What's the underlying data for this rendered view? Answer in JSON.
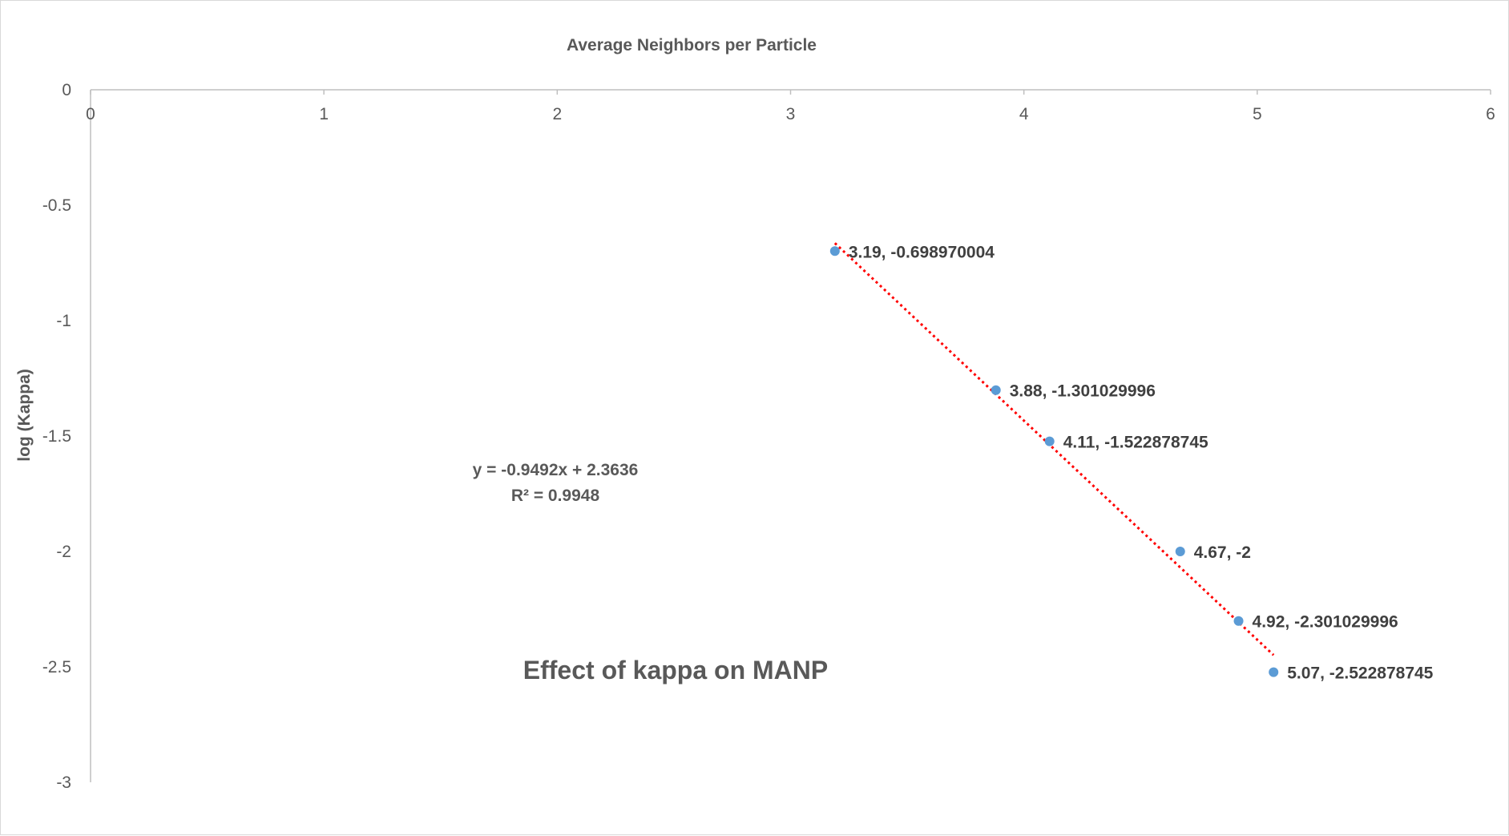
{
  "chart_data": {
    "type": "scatter",
    "title": "Effect of kappa on MANP",
    "xlabel": "Average Neighbors per Particle",
    "ylabel": "log (Kappa)",
    "xlim": [
      0,
      6
    ],
    "ylim": [
      -3,
      0
    ],
    "x_ticks": [
      "0",
      "1",
      "2",
      "3",
      "4",
      "5",
      "6"
    ],
    "y_ticks": [
      "0",
      "-0.5",
      "-1",
      "-1.5",
      "-2",
      "-2.5",
      "-3"
    ],
    "x_axis_position": "top",
    "grid": false,
    "legend": "none",
    "marker_color": "#5b9bd5",
    "trendline_color": "#ff0000",
    "series": [
      {
        "x": [
          3.19,
          3.88,
          4.11,
          4.67,
          4.92,
          5.07
        ],
        "y": [
          -0.698970004,
          -1.301029996,
          -1.522878745,
          -2,
          -2.301029996,
          -2.522878745
        ],
        "labels": [
          "3.19, -0.698970004",
          "3.88, -1.301029996",
          "4.11, -1.522878745",
          "4.67, -2",
          "4.92, -2.301029996",
          "5.07, -2.522878745"
        ]
      }
    ],
    "trendline": {
      "type": "linear",
      "slope": -0.9492,
      "intercept": 2.3636,
      "x_range": [
        3.19,
        5.07
      ],
      "equation": "y = -0.9492x + 2.3636",
      "r_squared": "R² = 0.9948"
    }
  }
}
